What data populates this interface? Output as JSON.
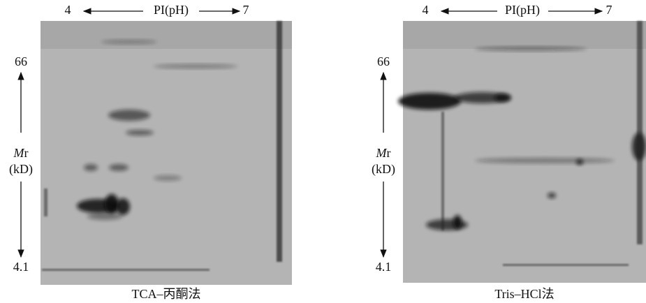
{
  "panels": [
    {
      "pi_low": "4",
      "pi_label": "PI(pH)",
      "pi_high": "7",
      "mw_high": "66",
      "mw_symbol": "M",
      "mw_sub": "r",
      "mw_unit": "(kD)",
      "mw_low": "4.1",
      "caption": "TCA–丙酮法"
    },
    {
      "pi_low": "4",
      "pi_label": "PI(pH)",
      "pi_high": "7",
      "mw_high": "66",
      "mw_symbol": "M",
      "mw_sub": "r",
      "mw_unit": "(kD)",
      "mw_low": "4.1",
      "caption": "Tris–HCl法"
    }
  ]
}
